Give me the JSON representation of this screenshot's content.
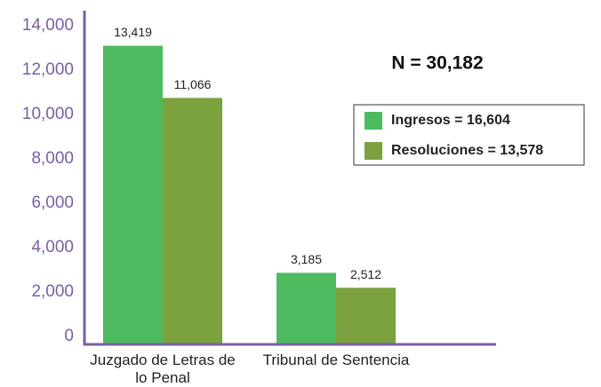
{
  "chart_data": {
    "type": "bar",
    "annotation": "N = 30,182",
    "categories": [
      "Juzgado de Letras de lo Penal",
      "Tribunal de Sentencia"
    ],
    "series": [
      {
        "name": "Ingresos = 16,604",
        "color": "#4cbb5e",
        "values": [
          13419,
          3185
        ],
        "value_labels": [
          "13,419",
          "3,185"
        ]
      },
      {
        "name": "Resoluciones = 13,578",
        "color": "#7ba23f",
        "values": [
          11066,
          2512
        ],
        "value_labels": [
          "11,066",
          "2,512"
        ]
      }
    ],
    "ylim": [
      0,
      14000
    ],
    "yticks": [
      0,
      {
        "value": 2000,
        "label": "2,000"
      },
      {
        "value": 4000,
        "label": "4,000"
      },
      {
        "value": 6000,
        "label": "6,000"
      },
      {
        "value": 8000,
        "label": "8,000"
      },
      {
        "value": 10000,
        "label": "10,000"
      },
      {
        "value": 12000,
        "label": "12,000"
      },
      {
        "value": 14000,
        "label": "14,000"
      }
    ],
    "axis_color": "#7a5ea8",
    "legend": "right"
  }
}
